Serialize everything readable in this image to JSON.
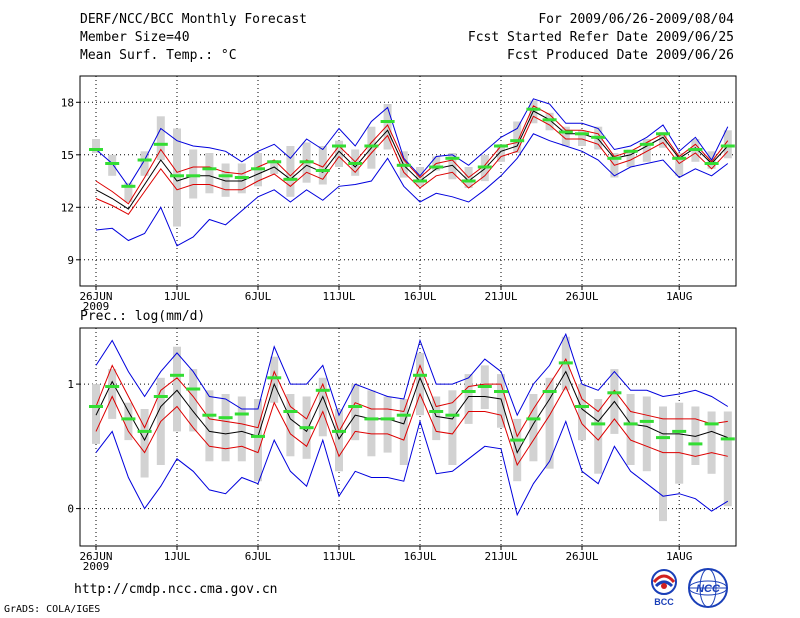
{
  "header": {
    "title": "DERF/NCC/BCC Monthly Forecast",
    "member_size": "Member Size=40",
    "variable": "Mean Surf. Temp.: °C",
    "period": "For 2009/06/26-2009/08/04",
    "refer_date": "Fcst Started Refer Date 2009/06/25",
    "produced_date": "Fcst Produced Date 2009/06/26"
  },
  "footer": {
    "url": "http://cmdp.ncc.cma.gov.cn",
    "grads": "GrADS: COLA/IGES",
    "logo_bcc": "BCC",
    "logo_ncc": "NCC"
  },
  "colors": {
    "envelope": "#0000dd",
    "spread": "#dd0000",
    "mean": "#000000",
    "box": "#d2d2d2",
    "marker": "#33dd33"
  },
  "chart_data": [
    {
      "type": "line",
      "title": "Mean Surf. Temp.: °C",
      "ylabel": "°C",
      "ylim": [
        7.5,
        19.5
      ],
      "yticks": [
        9,
        12,
        15,
        18
      ],
      "x_tick_labels": [
        {
          "day": 0,
          "label": "26JUN",
          "sub": "2009"
        },
        {
          "day": 5,
          "label": "1JUL"
        },
        {
          "day": 10,
          "label": "6JUL"
        },
        {
          "day": 15,
          "label": "11JUL"
        },
        {
          "day": 20,
          "label": "16JUL"
        },
        {
          "day": 25,
          "label": "21JUL"
        },
        {
          "day": 30,
          "label": "26JUL"
        },
        {
          "day": 36,
          "label": "1AUG"
        }
      ],
      "days": [
        0,
        1,
        2,
        3,
        4,
        5,
        6,
        7,
        8,
        9,
        10,
        11,
        12,
        13,
        14,
        15,
        16,
        17,
        18,
        19,
        20,
        21,
        22,
        23,
        24,
        25,
        26,
        27,
        28,
        29,
        30,
        31,
        32,
        33,
        34,
        35,
        36,
        37,
        38,
        39
      ],
      "series": [
        {
          "name": "max",
          "role": "envelope",
          "values": [
            15.3,
            14.5,
            13.2,
            14.7,
            16.5,
            15.8,
            15.5,
            15.4,
            15.2,
            14.6,
            15.2,
            15.6,
            14.8,
            15.9,
            15.3,
            16.5,
            15.5,
            16.9,
            17.7,
            14.8,
            13.8,
            14.9,
            15.0,
            14.4,
            15.2,
            16.0,
            16.5,
            18.2,
            17.9,
            16.8,
            16.8,
            16.5,
            15.3,
            15.5,
            16.0,
            16.7,
            15.2,
            16.0,
            14.7,
            16.6
          ]
        },
        {
          "name": "upper",
          "role": "spread",
          "values": [
            13.5,
            12.9,
            12.2,
            13.7,
            15.3,
            14.0,
            14.3,
            14.3,
            14.0,
            13.9,
            14.3,
            14.7,
            13.8,
            14.7,
            14.3,
            15.5,
            14.6,
            15.7,
            16.7,
            14.7,
            13.7,
            14.5,
            14.7,
            13.7,
            14.4,
            15.5,
            15.7,
            17.8,
            17.3,
            16.4,
            16.4,
            16.2,
            14.9,
            15.2,
            15.7,
            16.2,
            14.9,
            15.6,
            14.6,
            15.8
          ]
        },
        {
          "name": "ensemble mean",
          "role": "mean",
          "values": [
            13.0,
            12.5,
            11.9,
            13.3,
            14.7,
            13.5,
            13.8,
            13.8,
            13.5,
            13.5,
            13.9,
            14.3,
            13.6,
            14.4,
            14.0,
            15.2,
            14.3,
            15.4,
            16.4,
            14.4,
            13.5,
            14.2,
            14.4,
            13.5,
            14.2,
            15.2,
            15.5,
            17.5,
            17.0,
            16.2,
            16.2,
            15.9,
            14.8,
            15.0,
            15.5,
            16.0,
            14.8,
            15.4,
            14.5,
            15.5
          ]
        },
        {
          "name": "lower",
          "role": "spread",
          "values": [
            12.5,
            12.1,
            11.6,
            12.9,
            14.2,
            13.0,
            13.3,
            13.3,
            13.0,
            13.0,
            13.5,
            13.9,
            13.2,
            14.0,
            13.6,
            14.9,
            14.0,
            15.1,
            16.1,
            14.0,
            13.1,
            13.8,
            14.0,
            13.1,
            13.8,
            14.9,
            15.2,
            17.2,
            16.7,
            15.9,
            15.9,
            15.6,
            14.4,
            14.7,
            15.2,
            15.7,
            14.5,
            15.1,
            14.2,
            15.2
          ]
        },
        {
          "name": "min",
          "role": "envelope",
          "values": [
            10.7,
            10.8,
            10.1,
            10.5,
            12.0,
            9.8,
            10.3,
            11.3,
            11.0,
            11.8,
            12.6,
            13.0,
            12.3,
            13.0,
            12.4,
            13.2,
            13.3,
            13.5,
            14.8,
            13.2,
            12.3,
            12.8,
            12.6,
            12.3,
            13.0,
            13.8,
            14.8,
            16.2,
            15.8,
            15.5,
            15.2,
            14.7,
            13.8,
            14.3,
            14.5,
            14.7,
            13.7,
            14.2,
            13.8,
            14.5
          ]
        }
      ],
      "box_ranges": [
        [
          15.1,
          15.9
        ],
        [
          13.8,
          15.0
        ],
        [
          12.3,
          13.4
        ],
        [
          13.8,
          15.2
        ],
        [
          14.7,
          17.2
        ],
        [
          10.9,
          16.5
        ],
        [
          12.5,
          15.3
        ],
        [
          12.8,
          15.1
        ],
        [
          12.6,
          14.5
        ],
        [
          12.8,
          14.5
        ],
        [
          13.2,
          15.1
        ],
        [
          13.9,
          14.7
        ],
        [
          12.6,
          15.5
        ],
        [
          13.4,
          15.7
        ],
        [
          13.3,
          15.5
        ],
        [
          14.3,
          15.8
        ],
        [
          13.8,
          15.3
        ],
        [
          14.2,
          16.6
        ],
        [
          15.3,
          17.9
        ],
        [
          13.7,
          15.2
        ],
        [
          13.2,
          14.3
        ],
        [
          14.1,
          14.9
        ],
        [
          13.6,
          15.1
        ],
        [
          13.1,
          14.3
        ],
        [
          13.5,
          15.0
        ],
        [
          14.6,
          15.6
        ],
        [
          15.1,
          16.9
        ],
        [
          16.8,
          18.1
        ],
        [
          16.4,
          17.4
        ],
        [
          15.5,
          16.6
        ],
        [
          15.5,
          16.4
        ],
        [
          15.3,
          16.6
        ],
        [
          13.7,
          15.1
        ],
        [
          14.3,
          15.3
        ],
        [
          14.6,
          15.9
        ],
        [
          15.4,
          16.3
        ],
        [
          13.8,
          15.1
        ],
        [
          14.6,
          15.9
        ],
        [
          14.2,
          15.2
        ],
        [
          14.8,
          16.4
        ]
      ],
      "markers": [
        15.3,
        14.5,
        13.2,
        14.7,
        15.6,
        13.8,
        13.8,
        14.2,
        13.8,
        13.7,
        14.2,
        14.6,
        13.6,
        14.6,
        14.1,
        15.5,
        14.5,
        15.5,
        16.9,
        14.4,
        13.5,
        14.3,
        14.8,
        13.5,
        14.3,
        15.5,
        15.8,
        17.6,
        17.0,
        16.3,
        16.2,
        16.0,
        14.8,
        15.2,
        15.6,
        16.2,
        14.8,
        15.3,
        14.5,
        15.5
      ]
    },
    {
      "type": "line",
      "title": "Prec.: log(mm/d)",
      "ylabel": "log(mm/d)",
      "ylim": [
        -0.3,
        1.45
      ],
      "yticks": [
        0,
        1
      ],
      "x_tick_labels": [
        {
          "day": 0,
          "label": "26JUN",
          "sub": "2009"
        },
        {
          "day": 5,
          "label": "1JUL"
        },
        {
          "day": 10,
          "label": "6JUL"
        },
        {
          "day": 15,
          "label": "11JUL"
        },
        {
          "day": 20,
          "label": "16JUL"
        },
        {
          "day": 25,
          "label": "21JUL"
        },
        {
          "day": 30,
          "label": "26JUL"
        },
        {
          "day": 36,
          "label": "1AUG"
        }
      ],
      "days": [
        0,
        1,
        2,
        3,
        4,
        5,
        6,
        7,
        8,
        9,
        10,
        11,
        12,
        13,
        14,
        15,
        16,
        17,
        18,
        19,
        20,
        21,
        22,
        23,
        24,
        25,
        26,
        27,
        28,
        29,
        30,
        31,
        32,
        33,
        34,
        35,
        36,
        37,
        38,
        39
      ],
      "series": [
        {
          "name": "max",
          "role": "envelope",
          "values": [
            1.15,
            1.35,
            1.1,
            0.9,
            1.1,
            1.25,
            1.1,
            0.9,
            0.88,
            0.8,
            0.8,
            1.3,
            1.0,
            1.0,
            1.15,
            0.75,
            1.0,
            0.95,
            0.9,
            0.88,
            1.35,
            1.0,
            1.0,
            1.05,
            1.2,
            1.1,
            0.75,
            1.0,
            1.15,
            1.4,
            1.0,
            0.95,
            1.1,
            0.95,
            0.95,
            0.9,
            0.92,
            0.95,
            0.9,
            0.82
          ]
        },
        {
          "name": "upper",
          "role": "spread",
          "values": [
            0.82,
            1.15,
            0.9,
            0.65,
            0.95,
            1.05,
            0.9,
            0.72,
            0.7,
            0.68,
            0.65,
            1.1,
            0.82,
            0.72,
            1.0,
            0.62,
            0.85,
            0.8,
            0.8,
            0.78,
            1.15,
            0.82,
            0.85,
            0.98,
            1.0,
            1.0,
            0.58,
            0.8,
            1.0,
            1.2,
            0.88,
            0.78,
            0.95,
            0.78,
            0.75,
            0.72,
            0.72,
            0.72,
            0.68,
            0.7
          ]
        },
        {
          "name": "ensemble mean",
          "role": "mean",
          "values": [
            0.75,
            1.02,
            0.78,
            0.55,
            0.82,
            0.95,
            0.78,
            0.62,
            0.6,
            0.62,
            0.58,
            1.0,
            0.72,
            0.62,
            0.9,
            0.56,
            0.75,
            0.72,
            0.72,
            0.68,
            1.05,
            0.74,
            0.72,
            0.9,
            0.9,
            0.88,
            0.45,
            0.68,
            0.88,
            1.1,
            0.8,
            0.7,
            0.86,
            0.68,
            0.66,
            0.6,
            0.6,
            0.58,
            0.62,
            0.57
          ]
        },
        {
          "name": "lower",
          "role": "spread",
          "values": [
            0.62,
            0.9,
            0.62,
            0.45,
            0.7,
            0.82,
            0.65,
            0.5,
            0.48,
            0.5,
            0.45,
            0.85,
            0.6,
            0.5,
            0.78,
            0.42,
            0.62,
            0.6,
            0.6,
            0.55,
            0.92,
            0.62,
            0.6,
            0.78,
            0.78,
            0.75,
            0.35,
            0.55,
            0.75,
            0.98,
            0.68,
            0.55,
            0.72,
            0.55,
            0.5,
            0.45,
            0.45,
            0.42,
            0.45,
            0.42
          ]
        },
        {
          "name": "min",
          "role": "envelope",
          "values": [
            0.45,
            0.62,
            0.25,
            0.0,
            0.18,
            0.4,
            0.3,
            0.15,
            0.12,
            0.25,
            0.2,
            0.55,
            0.3,
            0.18,
            0.55,
            0.1,
            0.3,
            0.25,
            0.25,
            0.22,
            0.7,
            0.28,
            0.3,
            0.4,
            0.5,
            0.48,
            -0.05,
            0.2,
            0.38,
            0.7,
            0.3,
            0.2,
            0.5,
            0.3,
            0.2,
            0.1,
            0.12,
            0.08,
            -0.02,
            0.06
          ]
        }
      ],
      "box_ranges": [
        [
          0.52,
          1.0
        ],
        [
          0.72,
          1.12
        ],
        [
          0.55,
          0.85
        ],
        [
          0.25,
          0.8
        ],
        [
          0.35,
          1.05
        ],
        [
          0.62,
          1.3
        ],
        [
          0.62,
          1.12
        ],
        [
          0.38,
          0.95
        ],
        [
          0.38,
          0.92
        ],
        [
          0.38,
          0.9
        ],
        [
          0.22,
          0.88
        ],
        [
          0.85,
          1.22
        ],
        [
          0.42,
          0.92
        ],
        [
          0.4,
          0.9
        ],
        [
          0.58,
          1.05
        ],
        [
          0.3,
          0.8
        ],
        [
          0.55,
          1.0
        ],
        [
          0.42,
          0.95
        ],
        [
          0.45,
          0.9
        ],
        [
          0.35,
          0.88
        ],
        [
          0.75,
          1.25
        ],
        [
          0.55,
          0.9
        ],
        [
          0.35,
          0.95
        ],
        [
          0.68,
          1.08
        ],
        [
          0.8,
          1.15
        ],
        [
          0.65,
          1.08
        ],
        [
          0.22,
          0.72
        ],
        [
          0.38,
          0.92
        ],
        [
          0.32,
          1.05
        ],
        [
          0.95,
          1.38
        ],
        [
          0.55,
          1.0
        ],
        [
          0.28,
          0.88
        ],
        [
          0.6,
          1.12
        ],
        [
          0.35,
          0.92
        ],
        [
          0.3,
          0.9
        ],
        [
          -0.1,
          0.82
        ],
        [
          0.2,
          0.85
        ],
        [
          0.35,
          0.82
        ],
        [
          0.28,
          0.78
        ],
        [
          0.02,
          0.78
        ]
      ],
      "markers": [
        0.82,
        0.98,
        0.72,
        0.62,
        0.9,
        1.07,
        0.96,
        0.75,
        0.73,
        0.76,
        0.58,
        1.05,
        0.78,
        0.65,
        0.95,
        0.62,
        0.82,
        0.72,
        0.72,
        0.75,
        1.07,
        0.78,
        0.75,
        0.94,
        0.98,
        0.94,
        0.55,
        0.72,
        0.94,
        1.17,
        0.82,
        0.68,
        0.93,
        0.68,
        0.7,
        0.57,
        0.62,
        0.52,
        0.68,
        0.56
      ]
    }
  ]
}
